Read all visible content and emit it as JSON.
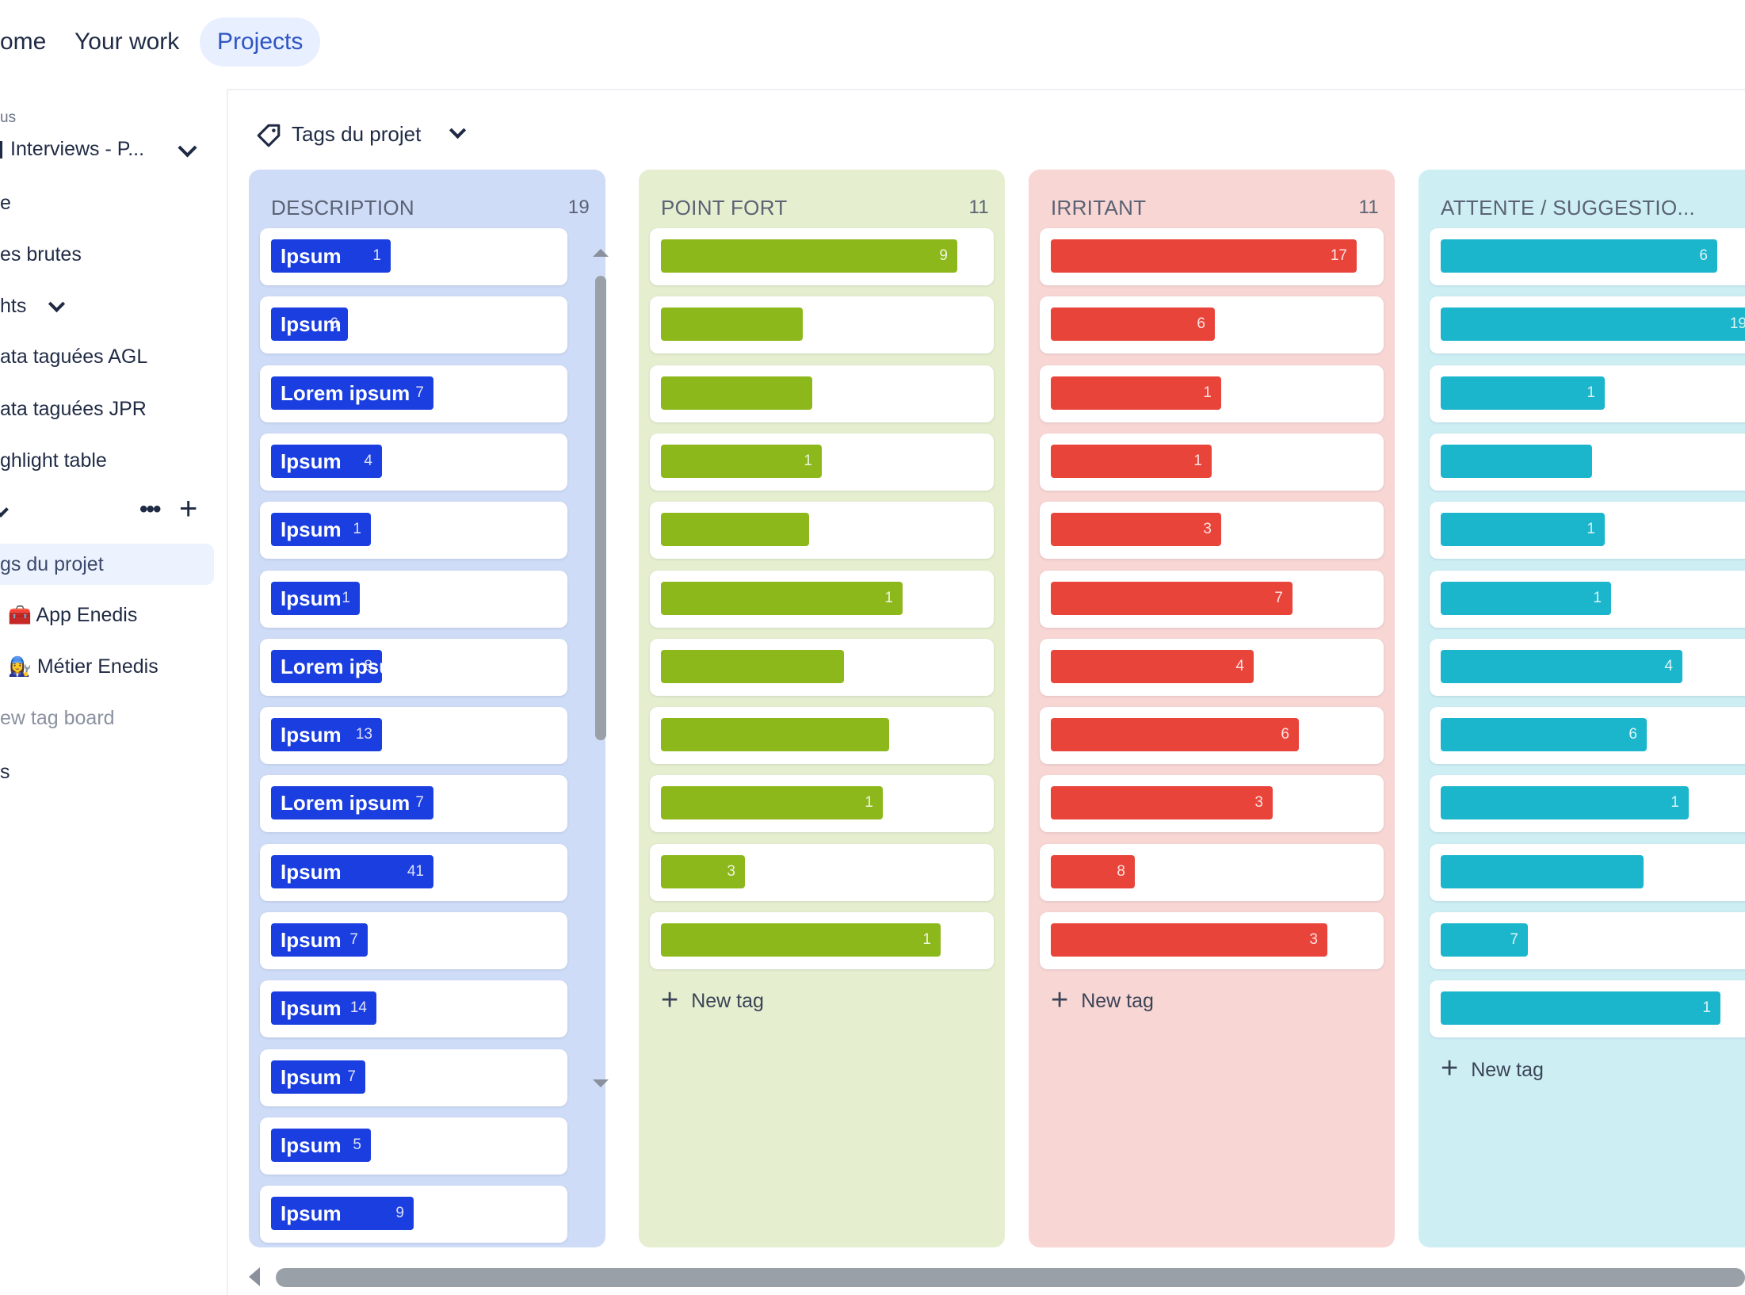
{
  "nav": {
    "home": "ome",
    "your_work": "Your work",
    "projects": "Projects"
  },
  "sidebar": {
    "section_label": "us",
    "project_name": "Interviews - P...",
    "items": [
      {
        "label": "e"
      },
      {
        "label": "es brutes"
      },
      {
        "label": "hts"
      },
      {
        "label": "ata taguées AGL"
      },
      {
        "label": "ata taguées JPR"
      },
      {
        "label": "ghlight table"
      }
    ],
    "tag_boards": [
      {
        "label": "gs du projet"
      },
      {
        "label": "App Enedis",
        "emoji": "🧰"
      },
      {
        "label": "Métier Enedis",
        "emoji": "👩‍🔧"
      }
    ],
    "new_tag_board": "ew tag board",
    "last_item": "s"
  },
  "tag_selector": {
    "label": "Tags du projet"
  },
  "colors": {
    "blue": "#1a3ee0",
    "green": "#8db81c",
    "red": "#e8443a",
    "cyan": "#1bb6cc"
  },
  "columns": [
    {
      "title": "DESCRIPTION",
      "count": "19",
      "bg": "#cfdcf7",
      "bar_color": "#1a3ee0",
      "cards": [
        {
          "label": "Ipsum",
          "count": "1",
          "fill": 0.42
        },
        {
          "label": "Ipsum",
          "count": "6",
          "fill": 0.27
        },
        {
          "label": "Lorem ipsum",
          "count": "7",
          "fill": 0.57
        },
        {
          "label": "Ipsum",
          "count": "4",
          "fill": 0.39
        },
        {
          "label": "Ipsum",
          "count": "1",
          "fill": 0.35
        },
        {
          "label": "Ipsum",
          "count": "1",
          "fill": 0.31
        },
        {
          "label": "Lorem ipsum",
          "count": "8",
          "fill": 0.39
        },
        {
          "label": "Ipsum",
          "count": "13",
          "fill": 0.39
        },
        {
          "label": "Lorem ipsum",
          "count": "7",
          "fill": 0.57
        },
        {
          "label": "Ipsum",
          "count": "41",
          "fill": 0.57
        },
        {
          "label": "Ipsum",
          "count": "7",
          "fill": 0.34
        },
        {
          "label": "Ipsum",
          "count": "14",
          "fill": 0.37
        },
        {
          "label": "Ipsum",
          "count": "7",
          "fill": 0.33
        },
        {
          "label": "Ipsum",
          "count": "5",
          "fill": 0.35
        },
        {
          "label": "Ipsum",
          "count": "9",
          "fill": 0.5
        }
      ]
    },
    {
      "title": "POINT FORT",
      "count": "11",
      "bg": "#e5efcf",
      "bar_color": "#8db81c",
      "new_tag": "New tag",
      "cards": [
        {
          "label": "",
          "count": "9",
          "fill": 0.92
        },
        {
          "label": "",
          "count": "",
          "fill": 0.44
        },
        {
          "label": "",
          "count": "",
          "fill": 0.47
        },
        {
          "label": "",
          "count": "1",
          "fill": 0.5
        },
        {
          "label": "",
          "count": "",
          "fill": 0.46
        },
        {
          "label": "",
          "count": "1",
          "fill": 0.75
        },
        {
          "label": "",
          "count": "",
          "fill": 0.57
        },
        {
          "label": "",
          "count": "",
          "fill": 0.71
        },
        {
          "label": "",
          "count": "1",
          "fill": 0.69
        },
        {
          "label": "",
          "count": "3",
          "fill": 0.26
        },
        {
          "label": "",
          "count": "1",
          "fill": 0.87
        }
      ]
    },
    {
      "title": "IRRITANT",
      "count": "11",
      "bg": "#f8d6d4",
      "bar_color": "#e8443a",
      "new_tag": "New tag",
      "cards": [
        {
          "label": "",
          "count": "17",
          "fill": 0.95
        },
        {
          "label": "",
          "count": "6",
          "fill": 0.51
        },
        {
          "label": "",
          "count": "1",
          "fill": 0.53
        },
        {
          "label": "",
          "count": "1",
          "fill": 0.5
        },
        {
          "label": "",
          "count": "3",
          "fill": 0.53
        },
        {
          "label": "",
          "count": "7",
          "fill": 0.75
        },
        {
          "label": "",
          "count": "4",
          "fill": 0.63
        },
        {
          "label": "",
          "count": "6",
          "fill": 0.77
        },
        {
          "label": "",
          "count": "3",
          "fill": 0.69
        },
        {
          "label": "",
          "count": "8",
          "fill": 0.26
        },
        {
          "label": "",
          "count": "3",
          "fill": 0.86
        }
      ]
    },
    {
      "title": "ATTENTE / SUGGESTIO...",
      "count": "",
      "bg": "#cdeff4",
      "bar_color": "#1bb6cc",
      "new_tag": "New tag",
      "cards": [
        {
          "label": "",
          "count": "6",
          "fill": 0.86
        },
        {
          "label": "",
          "count": "19",
          "fill": 0.98
        },
        {
          "label": "",
          "count": "1",
          "fill": 0.51
        },
        {
          "label": "",
          "count": "",
          "fill": 0.47
        },
        {
          "label": "",
          "count": "1",
          "fill": 0.51
        },
        {
          "label": "",
          "count": "1",
          "fill": 0.53
        },
        {
          "label": "",
          "count": "4",
          "fill": 0.75
        },
        {
          "label": "",
          "count": "6",
          "fill": 0.64
        },
        {
          "label": "",
          "count": "1",
          "fill": 0.77
        },
        {
          "label": "",
          "count": "",
          "fill": 0.63
        },
        {
          "label": "",
          "count": "7",
          "fill": 0.27
        },
        {
          "label": "",
          "count": "1",
          "fill": 0.87
        }
      ]
    }
  ]
}
